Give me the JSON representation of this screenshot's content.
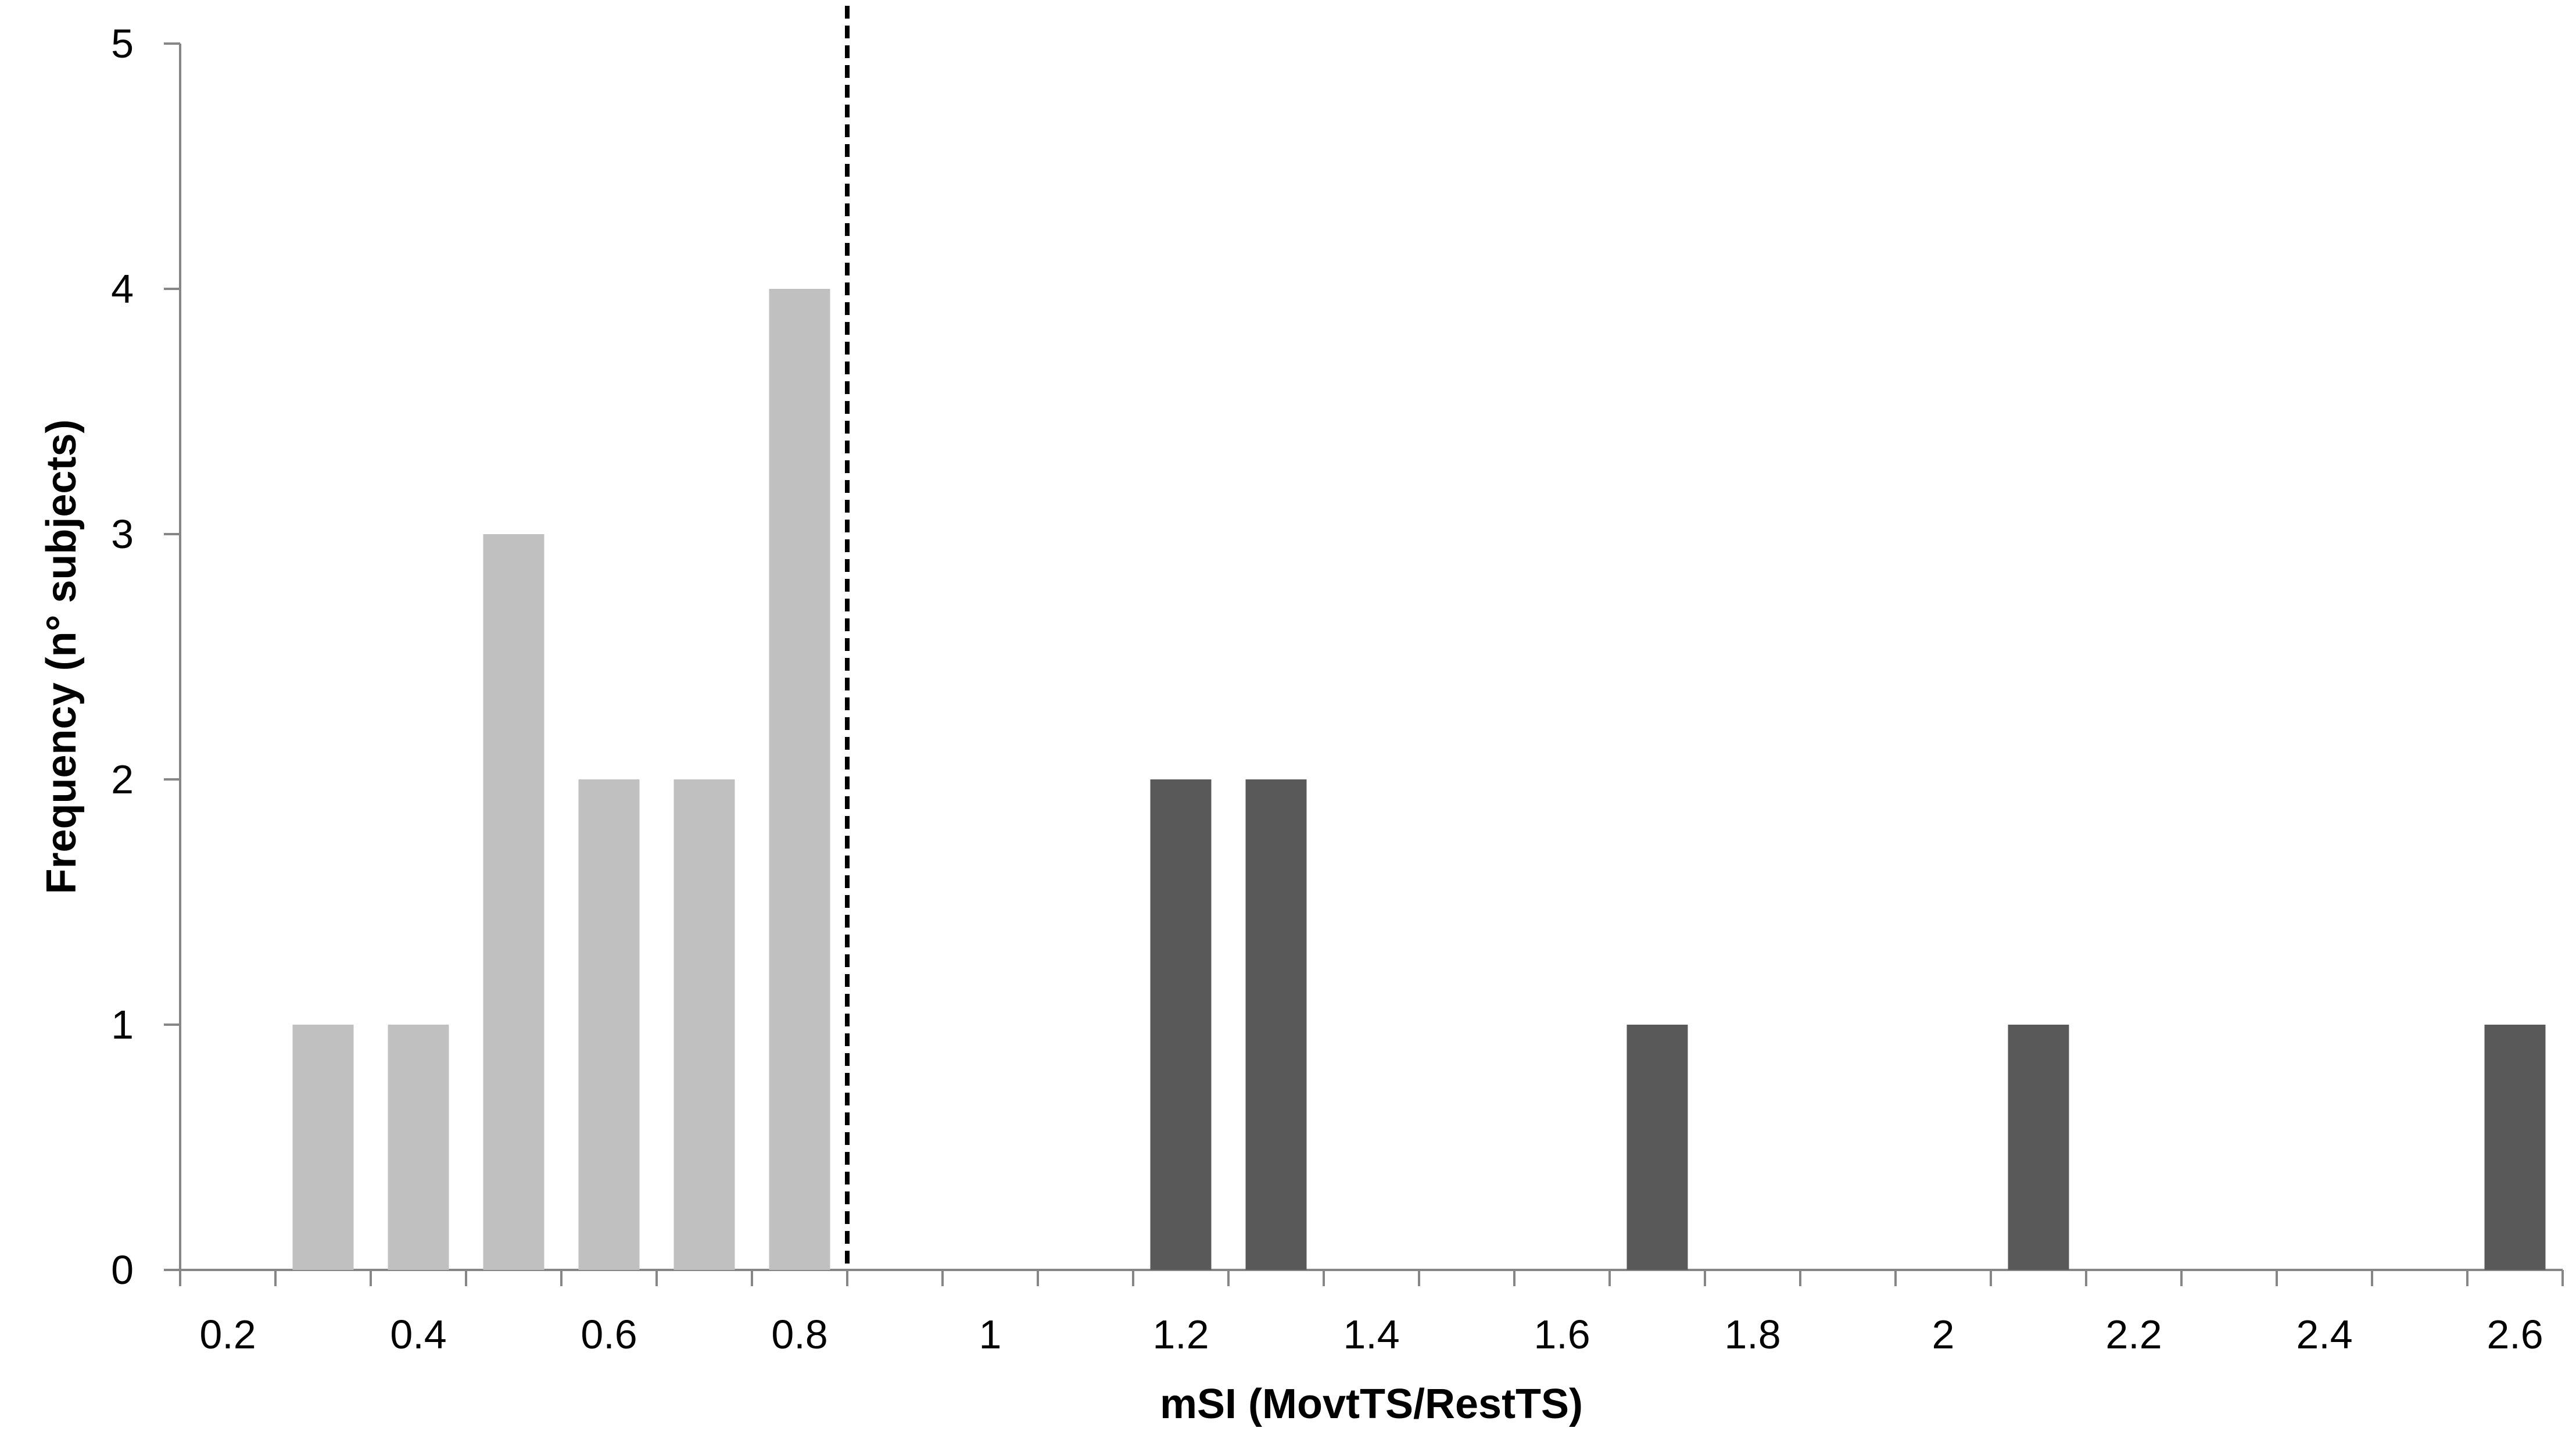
{
  "chart_data": {
    "type": "bar",
    "xlabel": "mSI (MovtTS/RestTS)",
    "ylabel": "Frequency (n° subjects)",
    "ylim": [
      0,
      5
    ],
    "y_ticks": [
      "0",
      "1",
      "2",
      "3",
      "4",
      "5"
    ],
    "x_tick_labels": [
      "0.2",
      "0.4",
      "0.6",
      "0.8",
      "1",
      "1.2",
      "1.4",
      "1.6",
      "1.8",
      "2",
      "2.2",
      "2.4",
      "2.6"
    ],
    "categories": [
      "0.2",
      "0.3",
      "0.4",
      "0.5",
      "0.6",
      "0.7",
      "0.8",
      "0.9",
      "1",
      "1.1",
      "1.2",
      "1.3",
      "1.4",
      "1.5",
      "1.6",
      "1.7",
      "1.8",
      "1.9",
      "2",
      "2.1",
      "2.2",
      "2.3",
      "2.4",
      "2.5"
    ],
    "series": [
      {
        "color": "#c0c0c0",
        "values": [
          0,
          1,
          1,
          3,
          2,
          2,
          4,
          0,
          0,
          0,
          0,
          0,
          0,
          0,
          0,
          0,
          0,
          0,
          0,
          0,
          0,
          0,
          0,
          0
        ]
      },
      {
        "color": "#595959",
        "values": [
          0,
          0,
          0,
          0,
          0,
          0,
          0,
          0,
          0,
          0,
          2,
          2,
          0,
          0,
          0,
          1,
          0,
          0,
          0,
          1,
          0,
          0,
          0,
          0
        ]
      }
    ],
    "extra_bar": {
      "label": "2.6",
      "value": 1,
      "color": "#595959"
    },
    "threshold_line": {
      "x": 0.85,
      "style": "dashed"
    },
    "grid": false,
    "legend": "none"
  }
}
